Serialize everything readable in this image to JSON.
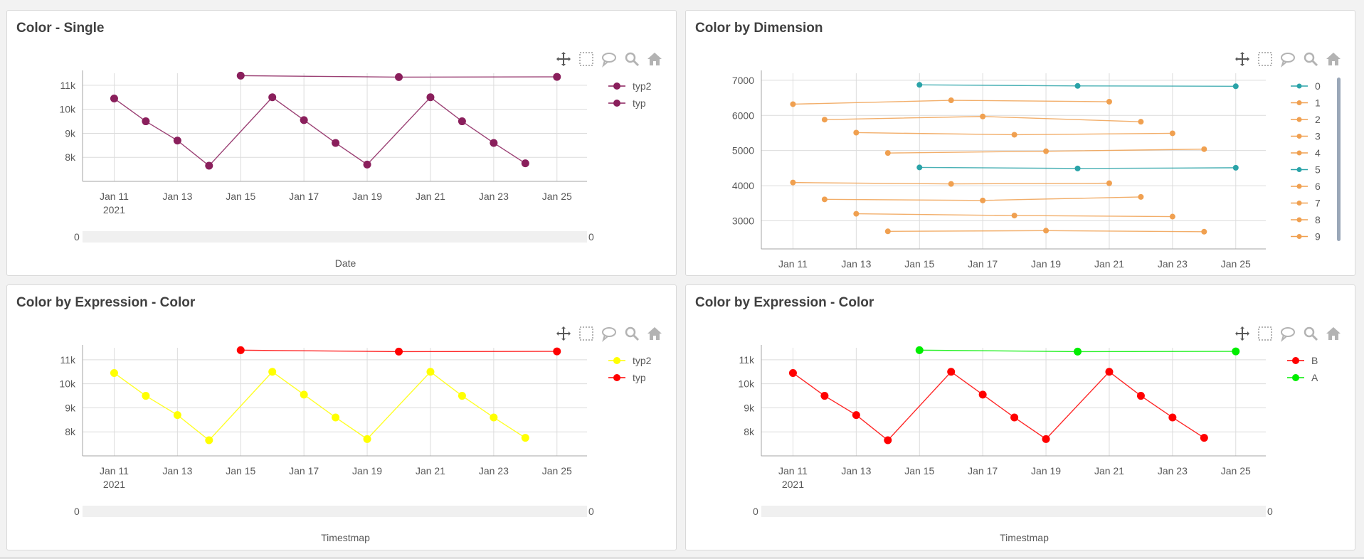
{
  "toolbar_icons": [
    "move-icon",
    "lasso-select-icon",
    "comment-icon",
    "zoom-icon",
    "home-icon"
  ],
  "colors": {
    "purple": "#8a1f5c",
    "teal": "#2aa3a8",
    "orange": "#f0a050",
    "yellow": "#ffff00",
    "red": "#ff0000",
    "green": "#00ee00",
    "grid": "#d9d9d9",
    "axis": "#999999"
  },
  "chart_data": [
    {
      "id": "p1",
      "type": "line",
      "title": "Color - Single",
      "x_ticks": [
        "Jan 11",
        "Jan 13",
        "Jan 15",
        "Jan 17",
        "Jan 19",
        "Jan 21",
        "Jan 23",
        "Jan 25"
      ],
      "x_tick_days": [
        11,
        13,
        15,
        17,
        19,
        21,
        23,
        25
      ],
      "x_sub_label": "2021",
      "xlim": [
        10.0,
        25.95
      ],
      "y_ticks": [
        "11k",
        "10k",
        "9k",
        "8k"
      ],
      "y_tick_values": [
        11000,
        10000,
        9000,
        8000
      ],
      "ylim": [
        7000,
        11500
      ],
      "scroll_min_label": "0",
      "scroll_max_label": "0",
      "footer": "Date",
      "legend": [
        {
          "label": "typ2",
          "color": "#8a1f5c"
        },
        {
          "label": "typ",
          "color": "#8a1f5c"
        }
      ],
      "series": [
        {
          "name": "typ2",
          "color": "#8a1f5c",
          "x": [
            15,
            20,
            25
          ],
          "y": [
            11400,
            11340,
            11350
          ]
        },
        {
          "name": "typ",
          "color": "#8a1f5c",
          "x": [
            11,
            12,
            13,
            14,
            16,
            17,
            18,
            19,
            21,
            22,
            23,
            24
          ],
          "y": [
            10450,
            9500,
            8700,
            7650,
            10500,
            9550,
            8600,
            7700,
            10500,
            9500,
            8600,
            7750
          ]
        }
      ]
    },
    {
      "id": "p2",
      "type": "line",
      "title": "Color by Dimension",
      "x_ticks": [
        "Jan 11",
        "Jan 13",
        "Jan 15",
        "Jan 17",
        "Jan 19",
        "Jan 21",
        "Jan 23",
        "Jan 25"
      ],
      "x_tick_days": [
        11,
        13,
        15,
        17,
        19,
        21,
        23,
        25
      ],
      "x_sub_label": "",
      "xlim": [
        10.0,
        25.95
      ],
      "y_ticks": [
        "7000",
        "6000",
        "5000",
        "4000",
        "3000"
      ],
      "y_tick_values": [
        7000,
        6000,
        5000,
        4000,
        3000
      ],
      "ylim": [
        2200,
        7200
      ],
      "footer": "",
      "legend": [
        {
          "label": "0",
          "color": "#2aa3a8"
        },
        {
          "label": "1",
          "color": "#f0a050"
        },
        {
          "label": "2",
          "color": "#f0a050"
        },
        {
          "label": "3",
          "color": "#f0a050"
        },
        {
          "label": "4",
          "color": "#f0a050"
        },
        {
          "label": "5",
          "color": "#2aa3a8"
        },
        {
          "label": "6",
          "color": "#f0a050"
        },
        {
          "label": "7",
          "color": "#f0a050"
        },
        {
          "label": "8",
          "color": "#f0a050"
        },
        {
          "label": "9",
          "color": "#f0a050"
        }
      ],
      "series": [
        {
          "name": "0",
          "color": "#2aa3a8",
          "x": [
            15,
            20,
            25
          ],
          "y": [
            6870,
            6840,
            6830
          ]
        },
        {
          "name": "1",
          "color": "#f0a050",
          "x": [
            11,
            16,
            21
          ],
          "y": [
            6320,
            6430,
            6390
          ]
        },
        {
          "name": "2",
          "color": "#f0a050",
          "x": [
            12,
            17,
            22
          ],
          "y": [
            5880,
            5970,
            5820
          ]
        },
        {
          "name": "3",
          "color": "#f0a050",
          "x": [
            13,
            18,
            23
          ],
          "y": [
            5510,
            5450,
            5490
          ]
        },
        {
          "name": "4",
          "color": "#f0a050",
          "x": [
            14,
            19,
            24
          ],
          "y": [
            4930,
            4980,
            5040
          ]
        },
        {
          "name": "5",
          "color": "#2aa3a8",
          "x": [
            15,
            20,
            25
          ],
          "y": [
            4520,
            4490,
            4510
          ]
        },
        {
          "name": "6",
          "color": "#f0a050",
          "x": [
            11,
            16,
            21
          ],
          "y": [
            4090,
            4050,
            4070
          ]
        },
        {
          "name": "7",
          "color": "#f0a050",
          "x": [
            12,
            17,
            22
          ],
          "y": [
            3610,
            3580,
            3680
          ]
        },
        {
          "name": "8",
          "color": "#f0a050",
          "x": [
            13,
            18,
            23
          ],
          "y": [
            3200,
            3150,
            3120
          ]
        },
        {
          "name": "9",
          "color": "#f0a050",
          "x": [
            14,
            19,
            24
          ],
          "y": [
            2700,
            2720,
            2690
          ]
        }
      ]
    },
    {
      "id": "p3",
      "type": "line",
      "title": "Color by Expression - Color",
      "x_ticks": [
        "Jan 11",
        "Jan 13",
        "Jan 15",
        "Jan 17",
        "Jan 19",
        "Jan 21",
        "Jan 23",
        "Jan 25"
      ],
      "x_tick_days": [
        11,
        13,
        15,
        17,
        19,
        21,
        23,
        25
      ],
      "x_sub_label": "2021",
      "xlim": [
        10.0,
        25.95
      ],
      "y_ticks": [
        "11k",
        "10k",
        "9k",
        "8k"
      ],
      "y_tick_values": [
        11000,
        10000,
        9000,
        8000
      ],
      "ylim": [
        7000,
        11500
      ],
      "scroll_min_label": "0",
      "scroll_max_label": "0",
      "footer": "Timestmap",
      "legend": [
        {
          "label": "typ2",
          "color": "#ffff00"
        },
        {
          "label": "typ",
          "color": "#ff0000"
        }
      ],
      "series": [
        {
          "name": "typ2",
          "color": "#ffff00",
          "x": [
            11,
            12,
            13,
            14,
            16,
            17,
            18,
            19,
            21,
            22,
            23,
            24
          ],
          "y": [
            10450,
            9500,
            8700,
            7650,
            10500,
            9550,
            8600,
            7700,
            10500,
            9500,
            8600,
            7750
          ]
        },
        {
          "name": "typ",
          "color": "#ff0000",
          "x": [
            15,
            20,
            25
          ],
          "y": [
            11400,
            11340,
            11350
          ]
        }
      ]
    },
    {
      "id": "p4",
      "type": "line",
      "title": "Color by Expression - Color",
      "x_ticks": [
        "Jan 11",
        "Jan 13",
        "Jan 15",
        "Jan 17",
        "Jan 19",
        "Jan 21",
        "Jan 23",
        "Jan 25"
      ],
      "x_tick_days": [
        11,
        13,
        15,
        17,
        19,
        21,
        23,
        25
      ],
      "x_sub_label": "2021",
      "xlim": [
        10.0,
        25.95
      ],
      "y_ticks": [
        "11k",
        "10k",
        "9k",
        "8k"
      ],
      "y_tick_values": [
        11000,
        10000,
        9000,
        8000
      ],
      "ylim": [
        7000,
        11500
      ],
      "scroll_min_label": "0",
      "scroll_max_label": "0",
      "footer": "Timestmap",
      "legend": [
        {
          "label": "B",
          "color": "#ff0000"
        },
        {
          "label": "A",
          "color": "#00ee00"
        }
      ],
      "series": [
        {
          "name": "B",
          "color": "#ff0000",
          "x": [
            11,
            12,
            13,
            14,
            16,
            17,
            18,
            19,
            21,
            22,
            23,
            24
          ],
          "y": [
            10450,
            9500,
            8700,
            7650,
            10500,
            9550,
            8600,
            7700,
            10500,
            9500,
            8600,
            7750
          ]
        },
        {
          "name": "A",
          "color": "#00ee00",
          "x": [
            15,
            20,
            25
          ],
          "y": [
            11400,
            11340,
            11350
          ]
        }
      ]
    }
  ]
}
